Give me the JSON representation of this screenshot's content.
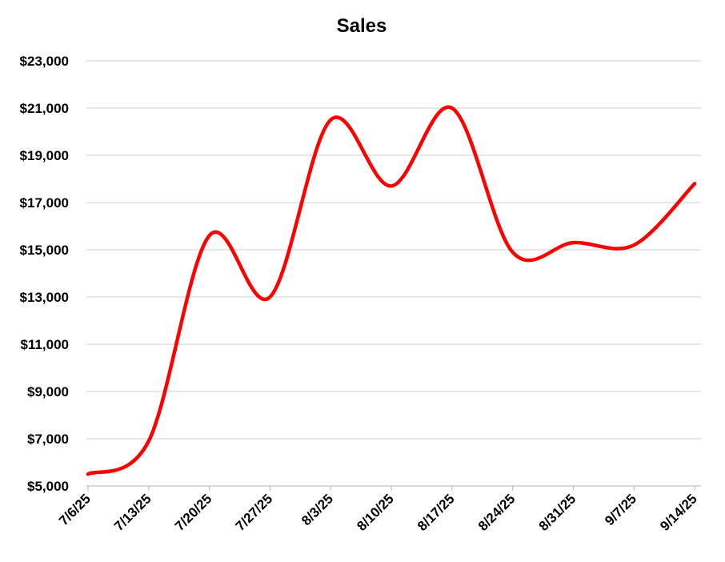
{
  "chart_data": {
    "type": "line",
    "title": "Sales",
    "xlabel": "",
    "ylabel": "",
    "x": [
      "7/6/25",
      "7/13/25",
      "7/20/25",
      "7/27/25",
      "8/3/25",
      "8/10/25",
      "8/17/25",
      "8/24/25",
      "8/31/25",
      "9/7/25",
      "9/14/25"
    ],
    "y_tick_labels": [
      "$5,000",
      "$7,000",
      "$9,000",
      "$11,000",
      "$13,000",
      "$15,000",
      "$17,000",
      "$19,000",
      "$21,000",
      "$23,000"
    ],
    "y_ticks": [
      5000,
      7000,
      9000,
      11000,
      13000,
      15000,
      17000,
      19000,
      21000,
      23000
    ],
    "ylim": [
      5000,
      23000
    ],
    "grid": true,
    "legend": "none",
    "smooth": true,
    "series": [
      {
        "color": "#ff0000",
        "values": [
          5500,
          6900,
          15600,
          13000,
          20500,
          17700,
          21000,
          14900,
          15300,
          15200,
          17800
        ]
      }
    ]
  }
}
